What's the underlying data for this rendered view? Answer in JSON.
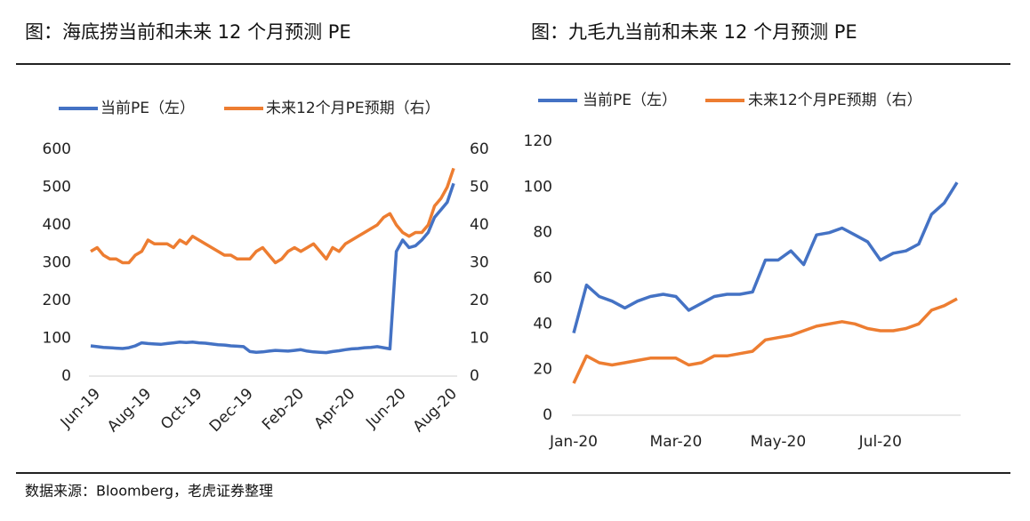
{
  "chart_data": [
    {
      "type": "line",
      "title": "图：海底捞当前和未来 12 个月预测 PE",
      "categories": [
        "Jun-19",
        null,
        null,
        null,
        null,
        null,
        null,
        null,
        "Aug-19",
        null,
        null,
        null,
        null,
        null,
        null,
        null,
        "Oct-19",
        null,
        null,
        null,
        null,
        null,
        null,
        null,
        "Dec-19",
        null,
        null,
        null,
        null,
        null,
        null,
        null,
        "Feb-20",
        null,
        null,
        null,
        null,
        null,
        null,
        null,
        "Apr-20",
        null,
        null,
        null,
        null,
        null,
        null,
        null,
        "Jun-20",
        null,
        null,
        null,
        null,
        null,
        null,
        null,
        "Aug-20",
        null
      ],
      "series": [
        {
          "name": "当前PE（左）",
          "color": "#4472c4",
          "axis": "y",
          "values": [
            80,
            78,
            76,
            75,
            74,
            73,
            75,
            80,
            88,
            86,
            85,
            84,
            86,
            88,
            90,
            89,
            90,
            88,
            87,
            85,
            83,
            82,
            80,
            79,
            78,
            65,
            63,
            64,
            66,
            68,
            67,
            66,
            68,
            70,
            66,
            64,
            63,
            62,
            65,
            67,
            70,
            72,
            73,
            75,
            76,
            78,
            75,
            72,
            330,
            360,
            340,
            345,
            360,
            380,
            420,
            440,
            460,
            510
          ]
        },
        {
          "name": "未来12个月PE预期（右）",
          "color": "#ed7d31",
          "axis": "y2",
          "values": [
            33,
            34,
            32,
            31,
            31,
            30,
            30,
            32,
            33,
            36,
            35,
            35,
            35,
            34,
            36,
            35,
            37,
            36,
            35,
            34,
            33,
            32,
            32,
            31,
            31,
            31,
            33,
            34,
            32,
            30,
            31,
            33,
            34,
            33,
            34,
            35,
            33,
            31,
            34,
            33,
            35,
            36,
            37,
            38,
            39,
            40,
            42,
            43,
            40,
            38,
            37,
            38,
            38,
            40,
            45,
            47,
            50,
            55
          ]
        }
      ],
      "ylim": [
        0,
        600
      ],
      "yticks": [
        0,
        100,
        200,
        300,
        400,
        500,
        600
      ],
      "y2lim": [
        0,
        60
      ],
      "y2ticks": [
        0,
        10,
        20,
        30,
        40,
        50,
        60
      ],
      "grid": false
    },
    {
      "type": "line",
      "title": "图：九毛九当前和未来 12 个月预测 PE",
      "categories": [
        "Jan-20",
        null,
        null,
        null,
        null,
        null,
        null,
        null,
        "Mar-20",
        null,
        null,
        null,
        null,
        null,
        null,
        null,
        "May-20",
        null,
        null,
        null,
        null,
        null,
        null,
        null,
        "Jul-20",
        null,
        null,
        null,
        null,
        null,
        null
      ],
      "series": [
        {
          "name": "当前PE（左）",
          "color": "#4472c4",
          "values": [
            36,
            57,
            52,
            50,
            47,
            50,
            52,
            53,
            52,
            46,
            49,
            52,
            53,
            53,
            54,
            68,
            68,
            72,
            66,
            79,
            80,
            82,
            79,
            76,
            68,
            71,
            72,
            75,
            88,
            93,
            102
          ]
        },
        {
          "name": "未来12个月PE预期（右）",
          "color": "#ed7d31",
          "values": [
            14,
            26,
            23,
            22,
            23,
            24,
            25,
            25,
            25,
            22,
            23,
            26,
            26,
            27,
            28,
            33,
            34,
            35,
            37,
            39,
            40,
            41,
            40,
            38,
            37,
            37,
            38,
            40,
            46,
            48,
            51
          ]
        }
      ],
      "ylim": [
        0,
        120
      ],
      "yticks": [
        0,
        20,
        40,
        60,
        80,
        100,
        120
      ],
      "grid": false
    }
  ],
  "source": "数据来源：Bloomberg，老虎证券整理"
}
